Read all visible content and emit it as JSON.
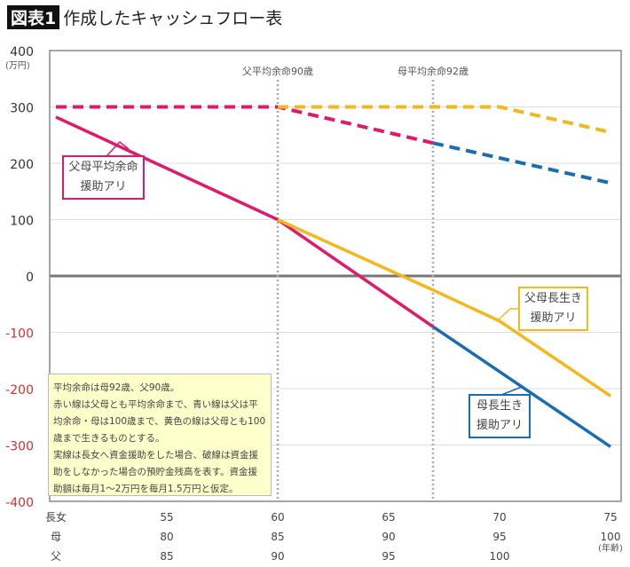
{
  "title": {
    "tag": "図表1",
    "text": "作成したキャッシュフロー表"
  },
  "colors": {
    "red": "#e0196b",
    "yellow": "#f2b81c",
    "blue": "#1a6db4",
    "negative_tick": "#d0312d"
  },
  "chart_data": {
    "type": "line",
    "ylabel": "(万円)",
    "ylim": [
      -400,
      400
    ],
    "yticks": [
      400,
      300,
      200,
      100,
      0,
      -100,
      -200,
      -300,
      -400
    ],
    "xlim": [
      50,
      75
    ],
    "grid": true,
    "x_rows": [
      {
        "label": "長女",
        "values": [
          "55",
          "60",
          "65",
          "70",
          "75"
        ]
      },
      {
        "label": "母",
        "values": [
          "80",
          "85",
          "90",
          "95",
          "100"
        ]
      },
      {
        "label": "父",
        "values": [
          "85",
          "90",
          "95",
          "100",
          ""
        ]
      }
    ],
    "x_ticks": [
      55,
      60,
      65,
      70,
      75
    ],
    "x_unit": "(年齢)",
    "vlines": [
      {
        "x": 60,
        "label": "父平均余命90歳"
      },
      {
        "x": 67,
        "label": "母平均余命92歳"
      }
    ],
    "series": [
      {
        "color": "red",
        "style": "solid",
        "points": [
          [
            50,
            282
          ],
          [
            60,
            100
          ],
          [
            67,
            -90
          ]
        ]
      },
      {
        "color": "yellow",
        "style": "solid",
        "points": [
          [
            60,
            100
          ],
          [
            67,
            -25
          ],
          [
            70,
            -80
          ],
          [
            75,
            -213
          ]
        ]
      },
      {
        "color": "blue",
        "style": "solid",
        "points": [
          [
            67,
            -90
          ],
          [
            75,
            -303
          ]
        ]
      },
      {
        "color": "red",
        "style": "dashed",
        "points": [
          [
            50,
            300
          ],
          [
            60,
            300
          ],
          [
            67,
            236
          ]
        ]
      },
      {
        "color": "yellow",
        "style": "dashed",
        "points": [
          [
            60,
            300
          ],
          [
            70,
            300
          ],
          [
            75,
            255
          ]
        ]
      },
      {
        "color": "blue",
        "style": "dashed",
        "points": [
          [
            67,
            236
          ],
          [
            75,
            165
          ]
        ]
      }
    ],
    "annotations": [
      {
        "lines": [
          "父母平均余命",
          "援助アリ"
        ],
        "color": "red"
      },
      {
        "lines": [
          "父母長生き",
          "援助アリ"
        ],
        "color": "yellow"
      },
      {
        "lines": [
          "母長生き",
          "援助アリ"
        ],
        "color": "blue"
      }
    ],
    "note": [
      "平均余命は母92歳、父90歳。",
      "赤い線は父母とも平均余命まで、青い線は父は平均余命・母は100歳まで、黄色の線は父母とも100歳まで生きるものとする。",
      "実線は長女へ資金援助をした場合、破線は資金援助をしなかった場合の預貯金残高を表す。資金援助額は毎月1〜2万円を毎月1.5万円と仮定。"
    ]
  }
}
